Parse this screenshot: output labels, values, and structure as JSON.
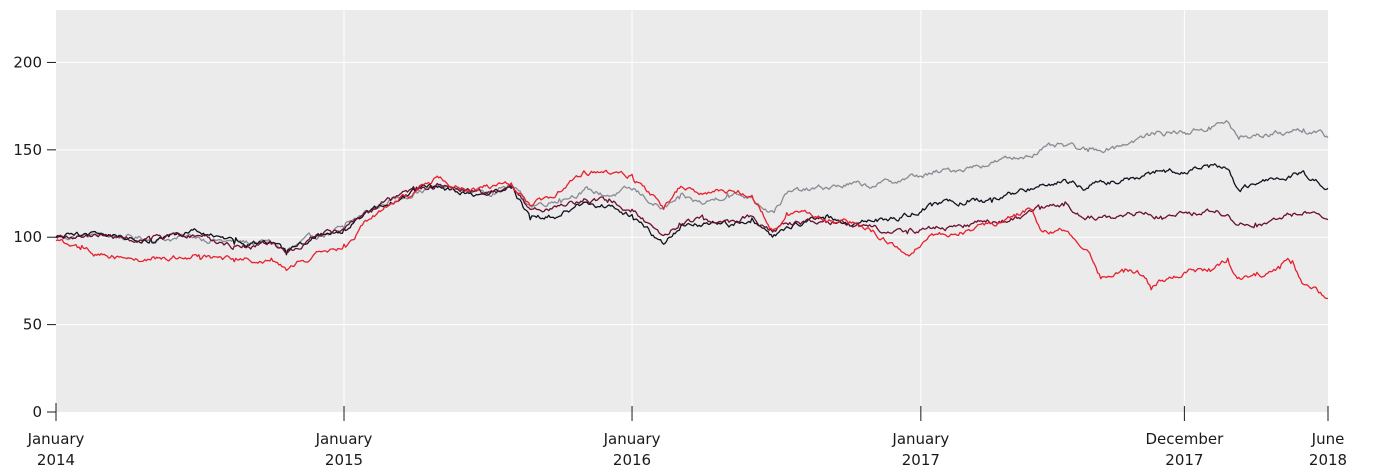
{
  "chart_data": {
    "type": "line",
    "title": "",
    "xlabel": "",
    "ylabel": "",
    "xlim": [
      "2014-01-01",
      "2018-06-01"
    ],
    "ylim": [
      0,
      230
    ],
    "grid": true,
    "legend": "none",
    "y_ticks": [
      {
        "value": 0,
        "label": "0"
      },
      {
        "value": 50,
        "label": "50"
      },
      {
        "value": 100,
        "label": "100"
      },
      {
        "value": 150,
        "label": "150"
      },
      {
        "value": 200,
        "label": "200"
      }
    ],
    "x_ticks": [
      {
        "value": "2014-01-01",
        "line1": "January",
        "line2": "2014"
      },
      {
        "value": "2015-01-01",
        "line1": "January",
        "line2": "2015"
      },
      {
        "value": "2016-01-01",
        "line1": "January",
        "line2": "2016"
      },
      {
        "value": "2017-01-01",
        "line1": "January",
        "line2": "2017"
      },
      {
        "value": "2017-12-01",
        "line1": "December",
        "line2": "2017"
      },
      {
        "value": "2018-06-01",
        "line1": "June",
        "line2": "2018"
      }
    ],
    "series": [
      {
        "color": "#8a8a94",
        "points": [
          [
            "2014-01-01",
            100
          ],
          [
            "2014-03-01",
            101
          ],
          [
            "2014-05-01",
            99
          ],
          [
            "2014-07-01",
            100
          ],
          [
            "2014-08-15",
            97
          ],
          [
            "2014-10-01",
            97
          ],
          [
            "2014-10-20",
            92
          ],
          [
            "2014-12-01",
            101
          ],
          [
            "2015-01-01",
            105
          ],
          [
            "2015-02-01",
            115
          ],
          [
            "2015-03-01",
            121
          ],
          [
            "2015-04-01",
            126
          ],
          [
            "2015-05-01",
            129
          ],
          [
            "2015-06-01",
            127
          ],
          [
            "2015-07-01",
            126
          ],
          [
            "2015-08-01",
            130
          ],
          [
            "2015-08-25",
            118
          ],
          [
            "2015-10-01",
            122
          ],
          [
            "2015-11-01",
            127
          ],
          [
            "2015-12-01",
            124
          ],
          [
            "2016-01-01",
            127
          ],
          [
            "2016-02-10",
            116
          ],
          [
            "2016-03-01",
            122
          ],
          [
            "2016-04-01",
            119
          ],
          [
            "2016-05-01",
            125
          ],
          [
            "2016-06-01",
            123
          ],
          [
            "2016-06-27",
            115
          ],
          [
            "2016-07-15",
            125
          ],
          [
            "2016-09-01",
            128
          ],
          [
            "2016-10-01",
            130
          ],
          [
            "2016-11-01",
            129
          ],
          [
            "2016-12-15",
            134
          ],
          [
            "2017-01-15",
            136
          ],
          [
            "2017-03-01",
            140
          ],
          [
            "2017-04-01",
            143
          ],
          [
            "2017-05-01",
            145
          ],
          [
            "2017-06-01",
            150
          ],
          [
            "2017-07-01",
            152
          ],
          [
            "2017-08-01",
            149
          ],
          [
            "2017-09-01",
            152
          ],
          [
            "2017-10-01",
            156
          ],
          [
            "2017-11-01",
            160
          ],
          [
            "2017-12-01",
            160
          ],
          [
            "2018-01-01",
            163
          ],
          [
            "2018-01-25",
            166
          ],
          [
            "2018-02-08",
            156
          ],
          [
            "2018-03-01",
            158
          ],
          [
            "2018-04-01",
            160
          ],
          [
            "2018-05-01",
            162
          ],
          [
            "2018-06-01",
            157
          ]
        ]
      },
      {
        "color": "#12121e",
        "points": [
          [
            "2014-01-01",
            100
          ],
          [
            "2014-03-01",
            102
          ],
          [
            "2014-05-01",
            99
          ],
          [
            "2014-07-01",
            103
          ],
          [
            "2014-08-15",
            96
          ],
          [
            "2014-10-01",
            97
          ],
          [
            "2014-10-20",
            90
          ],
          [
            "2014-12-01",
            101
          ],
          [
            "2015-01-01",
            105
          ],
          [
            "2015-02-01",
            114
          ],
          [
            "2015-03-01",
            120
          ],
          [
            "2015-04-01",
            126
          ],
          [
            "2015-05-01",
            129
          ],
          [
            "2015-06-01",
            126
          ],
          [
            "2015-07-01",
            124
          ],
          [
            "2015-08-01",
            128
          ],
          [
            "2015-08-25",
            110
          ],
          [
            "2015-10-01",
            112
          ],
          [
            "2015-11-01",
            120
          ],
          [
            "2015-12-01",
            118
          ],
          [
            "2016-01-01",
            113
          ],
          [
            "2016-02-10",
            96
          ],
          [
            "2016-03-01",
            104
          ],
          [
            "2016-04-01",
            108
          ],
          [
            "2016-05-01",
            107
          ],
          [
            "2016-06-01",
            111
          ],
          [
            "2016-06-27",
            100
          ],
          [
            "2016-07-15",
            106
          ],
          [
            "2016-09-01",
            110
          ],
          [
            "2016-10-01",
            108
          ],
          [
            "2016-11-01",
            109
          ],
          [
            "2016-12-15",
            112
          ],
          [
            "2017-01-15",
            118
          ],
          [
            "2017-03-01",
            121
          ],
          [
            "2017-04-01",
            120
          ],
          [
            "2017-05-01",
            125
          ],
          [
            "2017-06-01",
            130
          ],
          [
            "2017-07-01",
            133
          ],
          [
            "2017-08-01",
            128
          ],
          [
            "2017-09-01",
            132
          ],
          [
            "2017-10-01",
            134
          ],
          [
            "2017-11-01",
            138
          ],
          [
            "2017-12-01",
            137
          ],
          [
            "2018-01-01",
            140
          ],
          [
            "2018-01-25",
            139
          ],
          [
            "2018-02-08",
            127
          ],
          [
            "2018-03-01",
            130
          ],
          [
            "2018-04-01",
            133
          ],
          [
            "2018-05-01",
            138
          ],
          [
            "2018-06-01",
            128
          ]
        ]
      },
      {
        "color": "#6a1030",
        "points": [
          [
            "2014-01-01",
            100
          ],
          [
            "2014-03-01",
            101
          ],
          [
            "2014-05-01",
            98
          ],
          [
            "2014-07-01",
            101
          ],
          [
            "2014-08-15",
            95
          ],
          [
            "2014-10-01",
            96
          ],
          [
            "2014-10-20",
            91
          ],
          [
            "2014-12-01",
            101
          ],
          [
            "2015-01-01",
            104
          ],
          [
            "2015-02-01",
            114
          ],
          [
            "2015-03-01",
            121
          ],
          [
            "2015-04-01",
            127
          ],
          [
            "2015-05-01",
            130
          ],
          [
            "2015-06-01",
            127
          ],
          [
            "2015-07-01",
            125
          ],
          [
            "2015-08-01",
            129
          ],
          [
            "2015-08-25",
            116
          ],
          [
            "2015-10-01",
            118
          ],
          [
            "2015-11-01",
            122
          ],
          [
            "2015-12-01",
            120
          ],
          [
            "2016-01-01",
            116
          ],
          [
            "2016-02-10",
            101
          ],
          [
            "2016-03-01",
            108
          ],
          [
            "2016-04-01",
            110
          ],
          [
            "2016-05-01",
            110
          ],
          [
            "2016-06-01",
            112
          ],
          [
            "2016-06-27",
            103
          ],
          [
            "2016-07-15",
            108
          ],
          [
            "2016-09-01",
            110
          ],
          [
            "2016-10-01",
            108
          ],
          [
            "2016-11-01",
            106
          ],
          [
            "2016-12-15",
            102
          ],
          [
            "2017-01-15",
            105
          ],
          [
            "2017-03-01",
            107
          ],
          [
            "2017-04-01",
            108
          ],
          [
            "2017-05-01",
            112
          ],
          [
            "2017-06-01",
            116
          ],
          [
            "2017-07-01",
            118
          ],
          [
            "2017-08-01",
            112
          ],
          [
            "2017-09-01",
            111
          ],
          [
            "2017-10-01",
            114
          ],
          [
            "2017-11-01",
            112
          ],
          [
            "2017-12-01",
            114
          ],
          [
            "2018-01-01",
            115
          ],
          [
            "2018-01-25",
            113
          ],
          [
            "2018-02-08",
            107
          ],
          [
            "2018-03-01",
            108
          ],
          [
            "2018-04-01",
            111
          ],
          [
            "2018-05-01",
            114
          ],
          [
            "2018-06-01",
            110
          ]
        ]
      },
      {
        "color": "#e8202e",
        "points": [
          [
            "2014-01-01",
            98
          ],
          [
            "2014-02-01",
            93
          ],
          [
            "2014-03-01",
            90
          ],
          [
            "2014-05-01",
            87
          ],
          [
            "2014-07-01",
            90
          ],
          [
            "2014-08-15",
            86
          ],
          [
            "2014-10-01",
            88
          ],
          [
            "2014-10-20",
            81
          ],
          [
            "2014-12-01",
            92
          ],
          [
            "2015-01-01",
            96
          ],
          [
            "2015-02-01",
            110
          ],
          [
            "2015-03-01",
            119
          ],
          [
            "2015-04-01",
            126
          ],
          [
            "2015-05-01",
            134
          ],
          [
            "2015-06-01",
            128
          ],
          [
            "2015-07-01",
            130
          ],
          [
            "2015-08-01",
            131
          ],
          [
            "2015-08-25",
            118
          ],
          [
            "2015-10-01",
            126
          ],
          [
            "2015-11-01",
            138
          ],
          [
            "2015-12-01",
            137
          ],
          [
            "2016-01-01",
            136
          ],
          [
            "2016-02-10",
            116
          ],
          [
            "2016-03-01",
            128
          ],
          [
            "2016-04-01",
            125
          ],
          [
            "2016-05-01",
            126
          ],
          [
            "2016-06-01",
            124
          ],
          [
            "2016-06-27",
            104
          ],
          [
            "2016-07-15",
            114
          ],
          [
            "2016-09-01",
            110
          ],
          [
            "2016-10-01",
            108
          ],
          [
            "2016-11-01",
            104
          ],
          [
            "2016-12-15",
            90
          ],
          [
            "2017-01-15",
            102
          ],
          [
            "2017-03-01",
            104
          ],
          [
            "2017-04-01",
            108
          ],
          [
            "2017-05-01",
            112
          ],
          [
            "2017-05-20",
            116
          ],
          [
            "2017-06-05",
            103
          ],
          [
            "2017-07-01",
            104
          ],
          [
            "2017-08-01",
            92
          ],
          [
            "2017-08-15",
            79
          ],
          [
            "2017-09-15",
            80
          ],
          [
            "2017-10-10",
            78
          ],
          [
            "2017-10-20",
            70
          ],
          [
            "2017-11-01",
            75
          ],
          [
            "2017-12-01",
            80
          ],
          [
            "2018-01-01",
            82
          ],
          [
            "2018-01-25",
            88
          ],
          [
            "2018-02-08",
            77
          ],
          [
            "2018-03-01",
            78
          ],
          [
            "2018-04-01",
            82
          ],
          [
            "2018-04-15",
            85
          ],
          [
            "2018-05-01",
            73
          ],
          [
            "2018-06-01",
            65
          ]
        ]
      }
    ]
  }
}
